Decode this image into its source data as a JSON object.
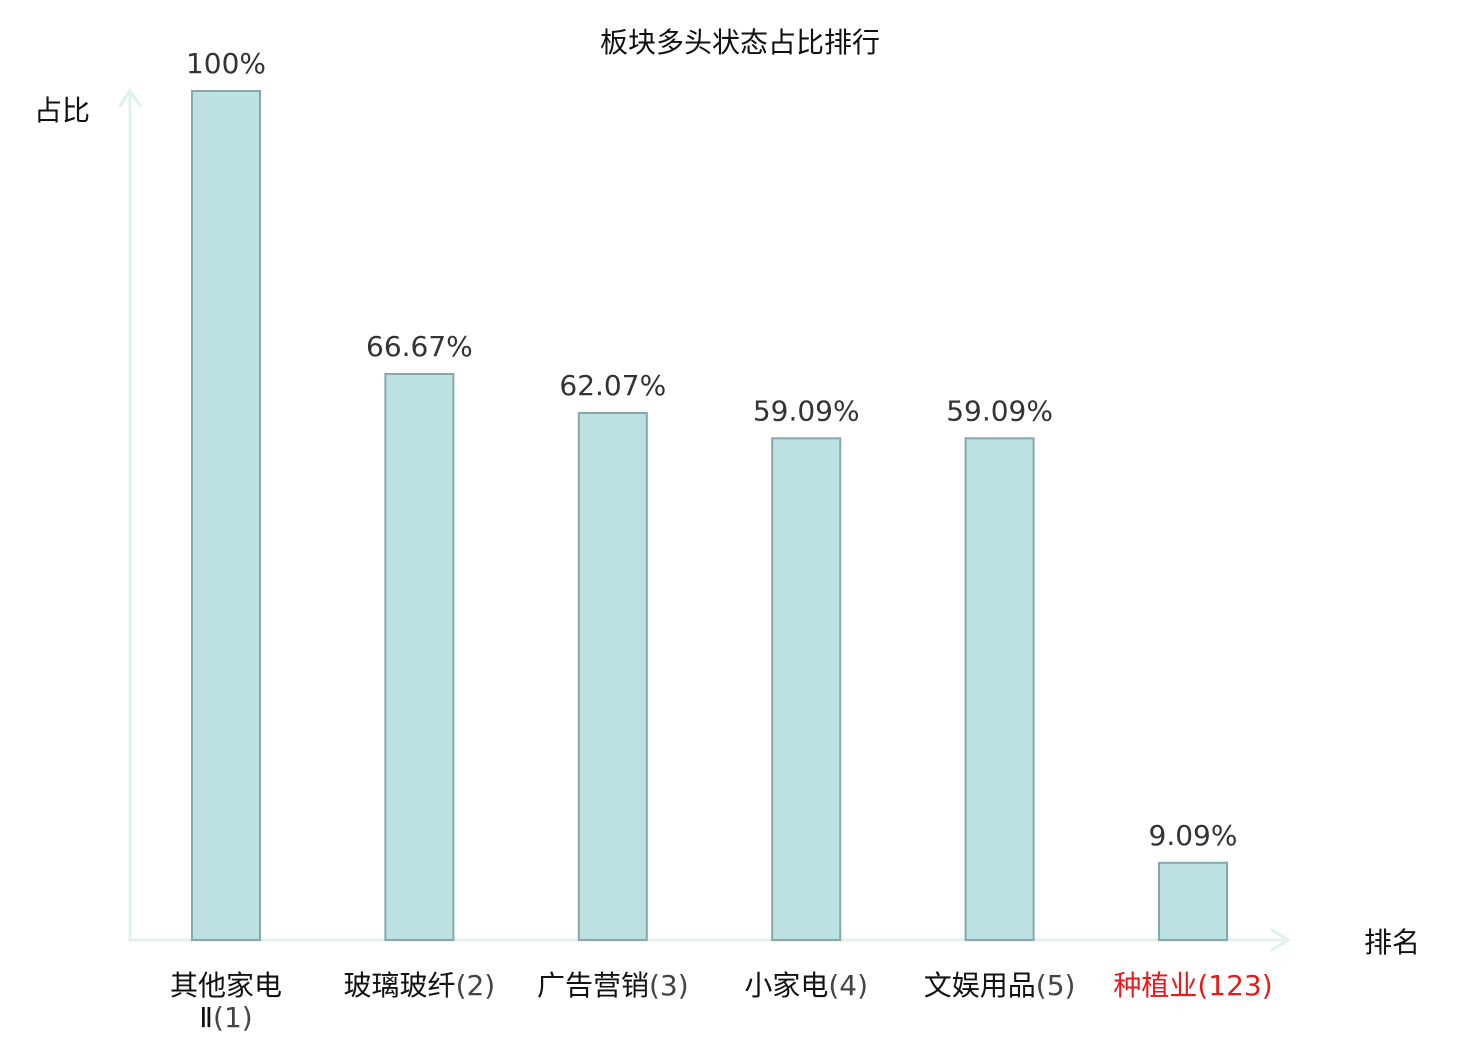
{
  "chart_data": {
    "type": "bar",
    "title": "板块多头状态占比排行",
    "ylabel": "占比",
    "xlabel": "排名",
    "ylim": [
      0,
      100
    ],
    "grid": false,
    "categories": [
      {
        "name_lines": [
          "其他家电",
          "Ⅱ"
        ],
        "rank": "(1)",
        "highlight": false
      },
      {
        "name_lines": [
          "玻璃玻纤"
        ],
        "rank": "(2)",
        "highlight": false
      },
      {
        "name_lines": [
          "广告营销"
        ],
        "rank": "(3)",
        "highlight": false
      },
      {
        "name_lines": [
          "小家电"
        ],
        "rank": "(4)",
        "highlight": false
      },
      {
        "name_lines": [
          "文娱用品"
        ],
        "rank": "(5)",
        "highlight": false
      },
      {
        "name_lines": [
          "种植业"
        ],
        "rank": "(123)",
        "highlight": true
      }
    ],
    "values": [
      100,
      66.67,
      62.07,
      59.09,
      59.09,
      9.09
    ],
    "value_labels": [
      "100%",
      "66.67%",
      "62.07%",
      "59.09%",
      "59.09%",
      "9.09%"
    ],
    "colors": {
      "bar_fill": "#bde0e2",
      "bar_stroke": "#86a8aa",
      "axis": "#dff2ef",
      "highlight_text": "#e8191b",
      "normal_text": "#111111",
      "rank_text": "#444444"
    }
  }
}
